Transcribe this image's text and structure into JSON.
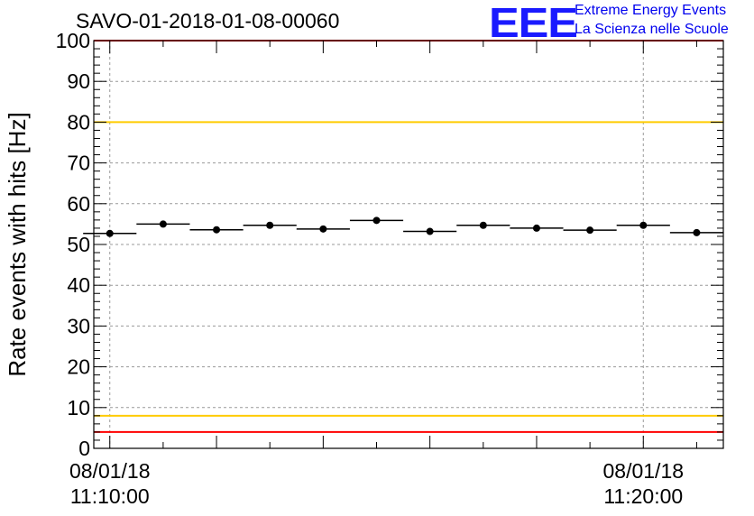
{
  "header": {
    "run_title": "SAVO-01-2018-01-08-00060",
    "logo_text": "EEE",
    "logo_line1": "Extreme Energy Events",
    "logo_line2": "La Scienza nelle Scuole"
  },
  "colors": {
    "red_limit": "#ff0000",
    "yellow_limit": "#ffcc00",
    "logo": "#0000ee",
    "grid": "#999999"
  },
  "chart_data": {
    "type": "scatter",
    "title": "SAVO-01-2018-01-08-00060",
    "ylabel": "Rate events with hits [Hz]",
    "xlabel": "",
    "x_time_start": "08/01/18 11:10:00",
    "x_time_end": "08/01/18 11:20:00",
    "x_tick_labels": [
      {
        "date": "08/01/18",
        "time": "11:10:00"
      },
      {
        "date": "08/01/18",
        "time": "11:20:00"
      }
    ],
    "xlim_minutes": [
      -0.3,
      11.5
    ],
    "ylim": [
      0,
      100
    ],
    "y_ticks": [
      0,
      10,
      20,
      30,
      40,
      50,
      60,
      70,
      80,
      90,
      100
    ],
    "grid": true,
    "x_minutes": [
      0,
      1,
      2,
      3,
      4,
      5,
      6,
      7,
      8,
      9,
      10,
      11
    ],
    "values": [
      52.7,
      55.0,
      53.6,
      54.7,
      53.8,
      55.9,
      53.2,
      54.7,
      54.0,
      53.5,
      54.7,
      52.9
    ],
    "bin_half_width_minutes": 0.5,
    "limit_lines": [
      {
        "value": 100,
        "color": "red"
      },
      {
        "value": 80,
        "color": "yellow"
      },
      {
        "value": 8,
        "color": "yellow"
      },
      {
        "value": 4,
        "color": "red"
      }
    ]
  }
}
